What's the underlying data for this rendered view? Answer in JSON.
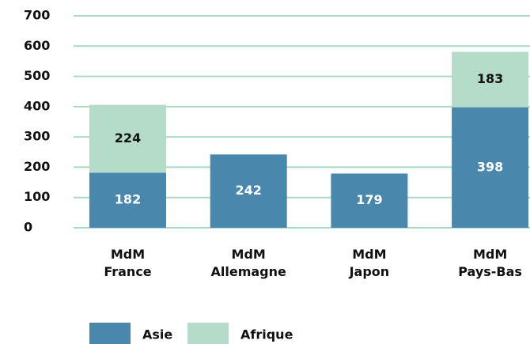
{
  "chart_data": {
    "type": "stacked_bar",
    "categories": [
      [
        "MdM",
        "France"
      ],
      [
        "MdM",
        "Allemagne"
      ],
      [
        "MdM",
        "Japon"
      ],
      [
        "MdM",
        "Pays-Bas"
      ]
    ],
    "series": [
      {
        "name": "Asie",
        "color": "#4a87ad",
        "values": [
          182,
          242,
          179,
          398
        ]
      },
      {
        "name": "Afrique",
        "color": "#b4dcc8",
        "values": [
          224,
          null,
          null,
          183
        ]
      }
    ],
    "ylim": [
      0,
      700
    ],
    "yticks": [
      0,
      100,
      200,
      300,
      400,
      500,
      600,
      700
    ],
    "grid": true
  }
}
